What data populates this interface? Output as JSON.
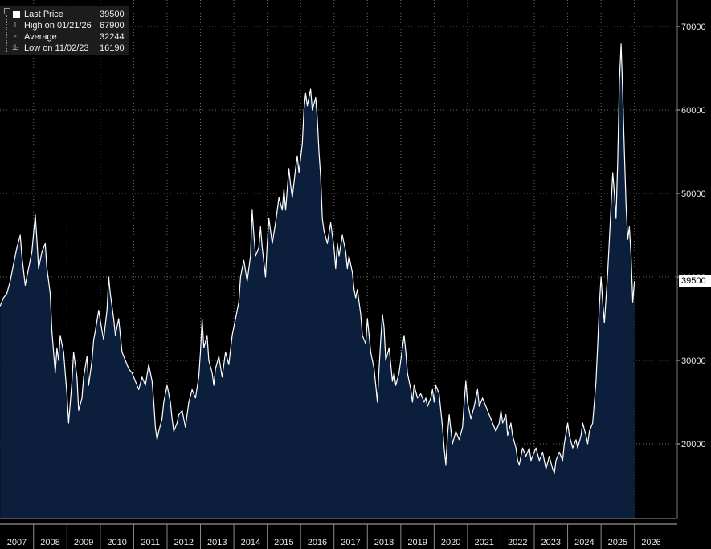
{
  "legend": {
    "last_price": {
      "label": "Last Price",
      "value": "39500"
    },
    "high": {
      "label": "High on 01/21/26",
      "value": "67900"
    },
    "average": {
      "label": "Average",
      "value": "32244"
    },
    "low": {
      "label": "Low on 11/02/23",
      "value": "16190"
    }
  },
  "last_value_tag": "39500",
  "chart_data": {
    "type": "area",
    "x_tick_labels": [
      "2007",
      "2008",
      "2009",
      "2010",
      "2011",
      "2012",
      "2013",
      "2014",
      "2015",
      "2016",
      "2017",
      "2018",
      "2019",
      "2020",
      "2021",
      "2022",
      "2023",
      "2024",
      "2025",
      "2026"
    ],
    "y_tick_labels": [
      "20000",
      "30000",
      "40000",
      "50000",
      "60000",
      "70000"
    ],
    "ylim": [
      11500,
      72000
    ],
    "y_axis_position": "right",
    "grid": true,
    "colors": {
      "line": "#ffffff",
      "fill": "#0b1f3d",
      "background": "#000000"
    },
    "series": [
      {
        "points": [
          [
            2006.5,
            36500
          ],
          [
            2006.6,
            37500
          ],
          [
            2006.7,
            38000
          ],
          [
            2006.8,
            39500
          ],
          [
            2006.9,
            41500
          ],
          [
            2007.0,
            43500
          ],
          [
            2007.1,
            45000
          ],
          [
            2007.15,
            42500
          ],
          [
            2007.25,
            39000
          ],
          [
            2007.35,
            41000
          ],
          [
            2007.45,
            43000
          ],
          [
            2007.55,
            47500
          ],
          [
            2007.6,
            44500
          ],
          [
            2007.65,
            41000
          ],
          [
            2007.75,
            43000
          ],
          [
            2007.85,
            44000
          ],
          [
            2007.9,
            41000
          ],
          [
            2007.95,
            39500
          ],
          [
            2008.0,
            38000
          ],
          [
            2008.05,
            33500
          ],
          [
            2008.1,
            31000
          ],
          [
            2008.15,
            28500
          ],
          [
            2008.2,
            31500
          ],
          [
            2008.25,
            30000
          ],
          [
            2008.3,
            33000
          ],
          [
            2008.4,
            31000
          ],
          [
            2008.45,
            28500
          ],
          [
            2008.5,
            26000
          ],
          [
            2008.55,
            22500
          ],
          [
            2008.65,
            27500
          ],
          [
            2008.7,
            31000
          ],
          [
            2008.8,
            28000
          ],
          [
            2008.85,
            24000
          ],
          [
            2008.95,
            25500
          ],
          [
            2009.0,
            28000
          ],
          [
            2009.1,
            30500
          ],
          [
            2009.15,
            27000
          ],
          [
            2009.25,
            30000
          ],
          [
            2009.3,
            32500
          ],
          [
            2009.35,
            33500
          ],
          [
            2009.45,
            36000
          ],
          [
            2009.55,
            33500
          ],
          [
            2009.6,
            32500
          ],
          [
            2009.7,
            36000
          ],
          [
            2009.75,
            40000
          ],
          [
            2009.8,
            38000
          ],
          [
            2009.9,
            35000
          ],
          [
            2009.95,
            33000
          ],
          [
            2010.05,
            35000
          ],
          [
            2010.15,
            31000
          ],
          [
            2010.25,
            30000
          ],
          [
            2010.35,
            29000
          ],
          [
            2010.45,
            28500
          ],
          [
            2010.55,
            27500
          ],
          [
            2010.65,
            26500
          ],
          [
            2010.75,
            28000
          ],
          [
            2010.85,
            27000
          ],
          [
            2010.95,
            29500
          ],
          [
            2011.05,
            27500
          ],
          [
            2011.1,
            25000
          ],
          [
            2011.15,
            22000
          ],
          [
            2011.2,
            20500
          ],
          [
            2011.25,
            21500
          ],
          [
            2011.35,
            23000
          ],
          [
            2011.4,
            25000
          ],
          [
            2011.5,
            27000
          ],
          [
            2011.6,
            25000
          ],
          [
            2011.65,
            23000
          ],
          [
            2011.7,
            21500
          ],
          [
            2011.8,
            22500
          ],
          [
            2011.85,
            23500
          ],
          [
            2011.95,
            24000
          ],
          [
            2012.05,
            22000
          ],
          [
            2012.15,
            25000
          ],
          [
            2012.25,
            26500
          ],
          [
            2012.35,
            25500
          ],
          [
            2012.45,
            28000
          ],
          [
            2012.5,
            31000
          ],
          [
            2012.55,
            35000
          ],
          [
            2012.6,
            31500
          ],
          [
            2012.7,
            33000
          ],
          [
            2012.75,
            30000
          ],
          [
            2012.85,
            28500
          ],
          [
            2012.9,
            27000
          ],
          [
            2012.95,
            29000
          ],
          [
            2013.05,
            30500
          ],
          [
            2013.15,
            28000
          ],
          [
            2013.25,
            31000
          ],
          [
            2013.35,
            29500
          ],
          [
            2013.45,
            33000
          ],
          [
            2013.55,
            35000
          ],
          [
            2013.65,
            37000
          ],
          [
            2013.7,
            40000
          ],
          [
            2013.8,
            42000
          ],
          [
            2013.9,
            39500
          ],
          [
            2014.0,
            42500
          ],
          [
            2014.05,
            48000
          ],
          [
            2014.1,
            45000
          ],
          [
            2014.15,
            42500
          ],
          [
            2014.25,
            43500
          ],
          [
            2014.3,
            46000
          ],
          [
            2014.35,
            43500
          ],
          [
            2014.45,
            40000
          ],
          [
            2014.5,
            44000
          ],
          [
            2014.55,
            47000
          ],
          [
            2014.65,
            44000
          ],
          [
            2014.75,
            46500
          ],
          [
            2014.85,
            49500
          ],
          [
            2014.95,
            48000
          ],
          [
            2015.0,
            50500
          ],
          [
            2015.05,
            48000
          ],
          [
            2015.15,
            53000
          ],
          [
            2015.2,
            51000
          ],
          [
            2015.25,
            49500
          ],
          [
            2015.35,
            53000
          ],
          [
            2015.4,
            54500
          ],
          [
            2015.45,
            52500
          ],
          [
            2015.55,
            56000
          ],
          [
            2015.6,
            60000
          ],
          [
            2015.65,
            62000
          ],
          [
            2015.7,
            60500
          ],
          [
            2015.8,
            62500
          ],
          [
            2015.85,
            60000
          ],
          [
            2015.95,
            61500
          ],
          [
            2016.0,
            59000
          ],
          [
            2016.05,
            55000
          ],
          [
            2016.1,
            52000
          ],
          [
            2016.15,
            47000
          ],
          [
            2016.2,
            45500
          ],
          [
            2016.3,
            44000
          ],
          [
            2016.4,
            46500
          ],
          [
            2016.5,
            43500
          ],
          [
            2016.55,
            41000
          ],
          [
            2016.6,
            44000
          ],
          [
            2016.65,
            42500
          ],
          [
            2016.75,
            45000
          ],
          [
            2016.85,
            43000
          ],
          [
            2016.9,
            41000
          ],
          [
            2016.95,
            42500
          ],
          [
            2017.05,
            40500
          ],
          [
            2017.1,
            38500
          ],
          [
            2017.15,
            37500
          ],
          [
            2017.2,
            38500
          ],
          [
            2017.3,
            35500
          ],
          [
            2017.35,
            33000
          ],
          [
            2017.45,
            32000
          ],
          [
            2017.5,
            35000
          ],
          [
            2017.55,
            33000
          ],
          [
            2017.6,
            31000
          ],
          [
            2017.7,
            29000
          ],
          [
            2017.75,
            27000
          ],
          [
            2017.8,
            25000
          ],
          [
            2017.85,
            29000
          ],
          [
            2017.9,
            32500
          ],
          [
            2017.95,
            35500
          ],
          [
            2018.0,
            34000
          ],
          [
            2018.05,
            30000
          ],
          [
            2018.15,
            31500
          ],
          [
            2018.2,
            29500
          ],
          [
            2018.25,
            27500
          ],
          [
            2018.3,
            28500
          ],
          [
            2018.35,
            27000
          ],
          [
            2018.45,
            28500
          ],
          [
            2018.55,
            31500
          ],
          [
            2018.6,
            33000
          ],
          [
            2018.65,
            31000
          ],
          [
            2018.7,
            28500
          ],
          [
            2018.8,
            26500
          ],
          [
            2018.85,
            25000
          ],
          [
            2018.9,
            27000
          ],
          [
            2019.0,
            25500
          ],
          [
            2019.1,
            26000
          ],
          [
            2019.2,
            25000
          ],
          [
            2019.25,
            25500
          ],
          [
            2019.3,
            24500
          ],
          [
            2019.4,
            25500
          ],
          [
            2019.45,
            26500
          ],
          [
            2019.5,
            25000
          ],
          [
            2019.55,
            27000
          ],
          [
            2019.65,
            26000
          ],
          [
            2019.7,
            24000
          ],
          [
            2019.75,
            22000
          ],
          [
            2019.8,
            19500
          ],
          [
            2019.85,
            17500
          ],
          [
            2019.9,
            21000
          ],
          [
            2019.95,
            23500
          ],
          [
            2020.05,
            20000
          ],
          [
            2020.15,
            21500
          ],
          [
            2020.25,
            20500
          ],
          [
            2020.35,
            22000
          ],
          [
            2020.4,
            25000
          ],
          [
            2020.45,
            27500
          ],
          [
            2020.5,
            25000
          ],
          [
            2020.6,
            23000
          ],
          [
            2020.7,
            24500
          ],
          [
            2020.8,
            26500
          ],
          [
            2020.85,
            24500
          ],
          [
            2020.95,
            25500
          ],
          [
            2021.05,
            24500
          ],
          [
            2021.15,
            23500
          ],
          [
            2021.25,
            22500
          ],
          [
            2021.35,
            21500
          ],
          [
            2021.45,
            22500
          ],
          [
            2021.5,
            24000
          ],
          [
            2021.55,
            22500
          ],
          [
            2021.65,
            23500
          ],
          [
            2021.7,
            21000
          ],
          [
            2021.8,
            22500
          ],
          [
            2021.85,
            21000
          ],
          [
            2021.95,
            19500
          ],
          [
            2022.0,
            18000
          ],
          [
            2022.05,
            17500
          ],
          [
            2022.15,
            19500
          ],
          [
            2022.25,
            18500
          ],
          [
            2022.35,
            19500
          ],
          [
            2022.4,
            18000
          ],
          [
            2022.5,
            19000
          ],
          [
            2022.55,
            19500
          ],
          [
            2022.65,
            18000
          ],
          [
            2022.75,
            19000
          ],
          [
            2022.8,
            18000
          ],
          [
            2022.85,
            17000
          ],
          [
            2022.95,
            18500
          ],
          [
            2023.05,
            17000
          ],
          [
            2023.1,
            16500
          ],
          [
            2023.15,
            18000
          ],
          [
            2023.25,
            19000
          ],
          [
            2023.35,
            18000
          ],
          [
            2023.4,
            20000
          ],
          [
            2023.5,
            22500
          ],
          [
            2023.55,
            21000
          ],
          [
            2023.65,
            19500
          ],
          [
            2023.75,
            20500
          ],
          [
            2023.8,
            19500
          ],
          [
            2023.9,
            21000
          ],
          [
            2023.95,
            22500
          ],
          [
            2024.05,
            21000
          ],
          [
            2024.1,
            20000
          ],
          [
            2024.15,
            21500
          ],
          [
            2024.25,
            22500
          ],
          [
            2024.3,
            25000
          ],
          [
            2024.35,
            27500
          ],
          [
            2024.4,
            32000
          ],
          [
            2024.45,
            36500
          ],
          [
            2024.5,
            40000
          ],
          [
            2024.55,
            37000
          ],
          [
            2024.6,
            34500
          ],
          [
            2024.7,
            40500
          ],
          [
            2024.75,
            44500
          ],
          [
            2024.8,
            48500
          ],
          [
            2024.85,
            52500
          ],
          [
            2024.9,
            50000
          ],
          [
            2024.95,
            47000
          ],
          [
            2025.0,
            54000
          ],
          [
            2025.05,
            63500
          ],
          [
            2025.1,
            67900
          ],
          [
            2025.15,
            62000
          ],
          [
            2025.2,
            55000
          ],
          [
            2025.25,
            48500
          ],
          [
            2025.3,
            44500
          ],
          [
            2025.35,
            46000
          ],
          [
            2025.4,
            42500
          ],
          [
            2025.45,
            37000
          ],
          [
            2025.5,
            39500
          ]
        ]
      }
    ]
  }
}
